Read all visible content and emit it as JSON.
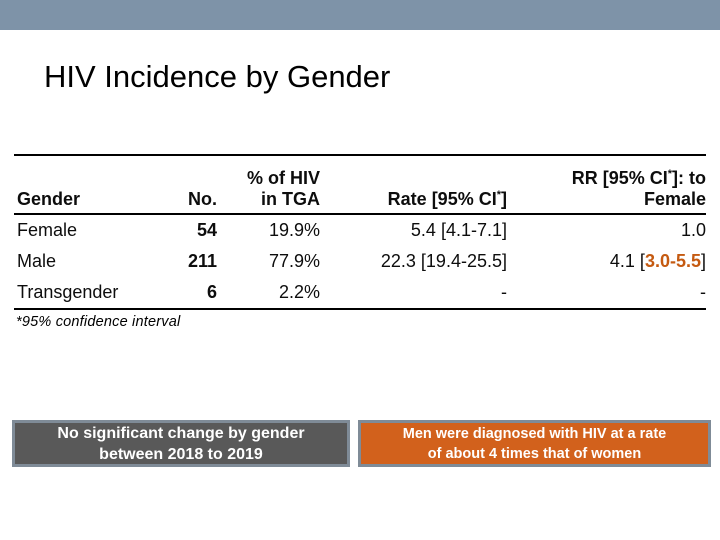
{
  "slide": {
    "title": "HIV Incidence by Gender",
    "colors": {
      "top_bar": "#7E93A8",
      "title_text": "#000000",
      "table_text": "#0d0d0d",
      "accent_orange": "#C55A11",
      "callout_gray_bg": "#595959",
      "callout_orange_bg": "#D2611C",
      "callout_border": "#7F8B97",
      "callout_text": "#ffffff"
    }
  },
  "table": {
    "headers": {
      "gender": "Gender",
      "no": "No.",
      "pct": [
        "% of HIV",
        "in TGA"
      ],
      "rate": {
        "pre": "Rate [95% CI",
        "sup": "*",
        "post": "]"
      },
      "rr": {
        "pre": "RR [95% CI",
        "sup": "*",
        "post": "]: to",
        "line2": "Female"
      }
    },
    "rows": [
      {
        "gender": "Female",
        "no": "54",
        "pct": "19.9%",
        "rate": "5.4 [4.1-7.1]",
        "rr_prefix": "1.0",
        "rr_highlight": "",
        "rr_suffix": ""
      },
      {
        "gender": "Male",
        "no": "211",
        "pct": "77.9%",
        "rate": "22.3 [19.4-25.5]",
        "rr_prefix": "4.1 [",
        "rr_highlight": "3.0-5.5",
        "rr_suffix": "]"
      },
      {
        "gender": "Transgender",
        "no": "6",
        "pct": "2.2%",
        "rate": "-",
        "rr_prefix": "-",
        "rr_highlight": "",
        "rr_suffix": ""
      }
    ],
    "footnote": "*95% confidence interval"
  },
  "callouts": {
    "gray": {
      "lines": [
        "No significant change by gender",
        "between 2018 to 2019"
      ]
    },
    "orange": {
      "lines": [
        "Men were diagnosed with HIV at a rate",
        "of about 4 times that of women"
      ]
    }
  }
}
